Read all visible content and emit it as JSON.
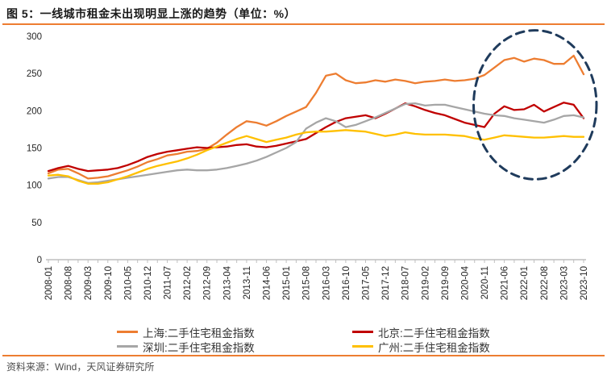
{
  "header": {
    "title": "图 5：一线城市租金未出现明显上涨的趋势（单位：%）"
  },
  "footer": {
    "source": "资料来源：Wind，天风证券研究所"
  },
  "colors": {
    "accent_rule": "#ED7D31",
    "axis_line": "#BFBFBF",
    "axis_text": "#262626",
    "highlight_ellipse": "#1F3B5C"
  },
  "chart_data": {
    "type": "line",
    "title": "一线城市租金未出现明显上涨的趋势",
    "unit": "%",
    "ylim": [
      0,
      300
    ],
    "y_ticks": [
      0,
      50,
      100,
      150,
      200,
      250,
      300
    ],
    "grid": false,
    "legend_position": "bottom",
    "x_tick_labels": [
      "2008-01",
      "2008-08",
      "2009-03",
      "2009-10",
      "2010-05",
      "2010-12",
      "2011-07",
      "2012-02",
      "2012-09",
      "2013-04",
      "2013-11",
      "2014-06",
      "2015-01",
      "2015-08",
      "2016-03",
      "2016-10",
      "2017-05",
      "2017-12",
      "2018-07",
      "2019-02",
      "2019-09",
      "2020-04",
      "2020-11",
      "2021-06",
      "2022-01",
      "2022-08",
      "2023-03",
      "2023-10"
    ],
    "points_per_tick_interval": 2,
    "series": [
      {
        "key": "shanghai",
        "name": "上海:二手住宅租金指数",
        "color": "#ED7D31",
        "values": [
          116,
          121,
          122,
          116,
          109,
          110,
          112,
          116,
          120,
          125,
          131,
          135,
          140,
          142,
          145,
          146,
          149,
          157,
          168,
          178,
          186,
          184,
          180,
          186,
          193,
          199,
          205,
          224,
          247,
          250,
          241,
          237,
          238,
          241,
          239,
          242,
          240,
          237,
          239,
          240,
          242,
          240,
          241,
          243,
          248,
          258,
          268,
          271,
          266,
          270,
          268,
          263,
          263,
          274,
          249
        ]
      },
      {
        "key": "beijing",
        "name": "北京:二手住宅租金指数",
        "color": "#C00000",
        "values": [
          119,
          123,
          126,
          122,
          119,
          120,
          121,
          123,
          127,
          132,
          138,
          142,
          145,
          147,
          149,
          151,
          150,
          151,
          152,
          154,
          155,
          152,
          151,
          153,
          156,
          159,
          162,
          170,
          178,
          185,
          190,
          192,
          194,
          190,
          196,
          203,
          210,
          206,
          201,
          197,
          194,
          189,
          184,
          181,
          178,
          196,
          206,
          201,
          202,
          208,
          199,
          205,
          211,
          208,
          190
        ]
      },
      {
        "key": "shenzhen",
        "name": "深圳:二手住宅租金指数",
        "color": "#A6A6A6",
        "values": [
          109,
          111,
          111,
          107,
          103,
          104,
          106,
          108,
          110,
          112,
          114,
          116,
          118,
          120,
          121,
          120,
          120,
          121,
          123,
          126,
          129,
          133,
          138,
          144,
          150,
          158,
          176,
          184,
          190,
          186,
          178,
          181,
          186,
          191,
          197,
          203,
          209,
          210,
          207,
          208,
          208,
          205,
          202,
          199,
          196,
          194,
          193,
          190,
          188,
          186,
          184,
          188,
          193,
          194,
          191
        ]
      },
      {
        "key": "guangzhou",
        "name": "广州:二手住宅租金指数",
        "color": "#FFC000",
        "values": [
          113,
          114,
          112,
          106,
          102,
          102,
          104,
          108,
          112,
          117,
          122,
          126,
          129,
          132,
          136,
          141,
          147,
          152,
          157,
          162,
          166,
          162,
          158,
          161,
          164,
          168,
          171,
          172,
          172,
          173,
          174,
          173,
          172,
          169,
          166,
          168,
          171,
          169,
          168,
          168,
          168,
          167,
          166,
          163,
          161,
          164,
          167,
          166,
          165,
          164,
          164,
          165,
          166,
          165,
          165
        ]
      }
    ],
    "highlight_ellipse": {
      "center_x_index": 49.1,
      "center_value": 208,
      "radius_x_indices": 6.2,
      "radius_value": 100,
      "color": "#1F3B5C",
      "dash": "10 7",
      "stroke_width": 3
    }
  }
}
